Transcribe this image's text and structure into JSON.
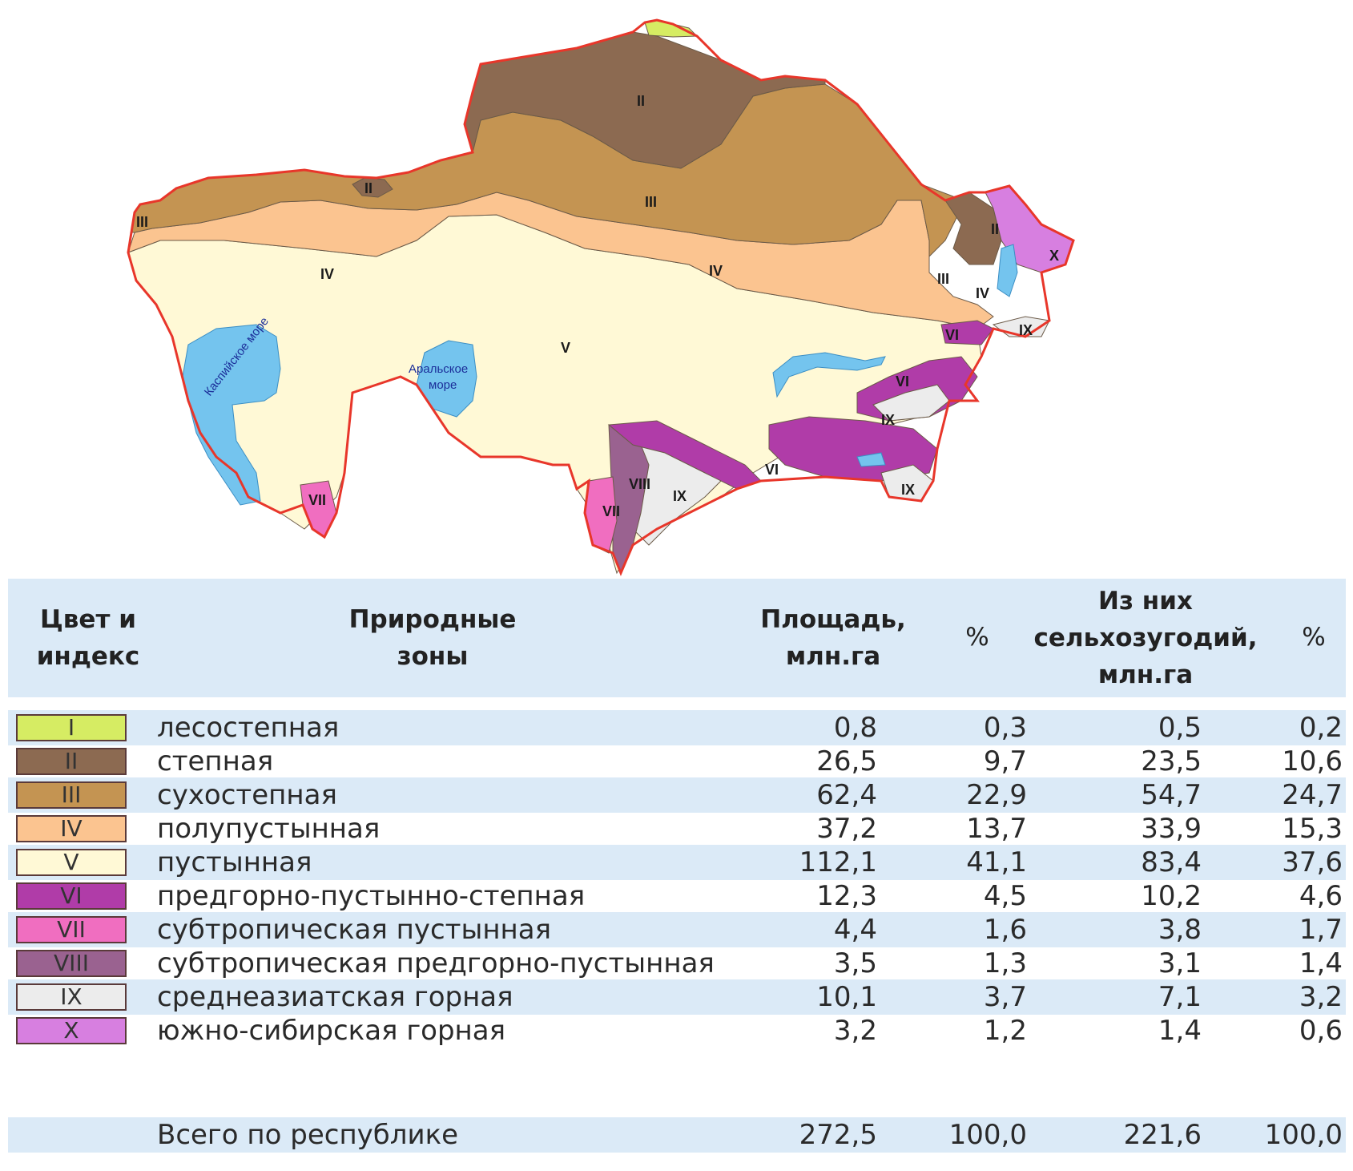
{
  "map": {
    "sea_labels": {
      "caspian": "Каспийское море",
      "aral_line1": "Аральское",
      "aral_line2": "море"
    },
    "colors": {
      "border": "#e8362a",
      "water": "#74c4ee",
      "I": "#d6ec63",
      "II": "#8c6a51",
      "III": "#c49452",
      "IV": "#fbc490",
      "V": "#fff9d6",
      "VI": "#b03ca8",
      "VII": "#f06ec0",
      "VIII": "#9a6290",
      "IX": "#ececec",
      "X": "#d77fe0"
    }
  },
  "legend": {
    "headers": {
      "color_index": [
        "Цвет и",
        "индекс"
      ],
      "zones": [
        "Природные",
        "зоны"
      ],
      "area": [
        "Площадь,",
        "млн.га"
      ],
      "pct": "%",
      "agri": [
        "Из них",
        "сельхозугодий,",
        "млн.га"
      ],
      "pct2": "%"
    },
    "rows": [
      {
        "index": "I",
        "color": "#d6ec63",
        "name": "лесостепная",
        "area": "0,8",
        "pct": "0,3",
        "agri": "0,5",
        "agri_pct": "0,2"
      },
      {
        "index": "II",
        "color": "#8c6a51",
        "name": "степная",
        "area": "26,5",
        "pct": "9,7",
        "agri": "23,5",
        "agri_pct": "10,6"
      },
      {
        "index": "III",
        "color": "#c49452",
        "name": "сухостепная",
        "area": "62,4",
        "pct": "22,9",
        "agri": "54,7",
        "agri_pct": "24,7"
      },
      {
        "index": "IV",
        "color": "#fbc490",
        "name": "полупустынная",
        "area": "37,2",
        "pct": "13,7",
        "agri": "33,9",
        "agri_pct": "15,3"
      },
      {
        "index": "V",
        "color": "#fff9d6",
        "name": "пустынная",
        "area": "112,1",
        "pct": "41,1",
        "agri": "83,4",
        "agri_pct": "37,6"
      },
      {
        "index": "VI",
        "color": "#b03ca8",
        "name": "предгорно-пустынно-степная",
        "area": "12,3",
        "pct": "4,5",
        "agri": "10,2",
        "agri_pct": "4,6"
      },
      {
        "index": "VII",
        "color": "#f06ec0",
        "name": "субтропическая пустынная",
        "area": "4,4",
        "pct": "1,6",
        "agri": "3,8",
        "agri_pct": "1,7"
      },
      {
        "index": "VIII",
        "color": "#9a6290",
        "name": "субтропическая предгорно-пустынная",
        "area": "3,5",
        "pct": "1,3",
        "agri": "3,1",
        "agri_pct": "1,4"
      },
      {
        "index": "IX",
        "color": "#ececec",
        "name": "среднеазиатская горная",
        "area": "10,1",
        "pct": "3,7",
        "agri": "7,1",
        "agri_pct": "3,2"
      },
      {
        "index": "X",
        "color": "#d77fe0",
        "name": "южно-сибирская горная",
        "area": "3,2",
        "pct": "1,2",
        "agri": "1,4",
        "agri_pct": "0,6"
      }
    ],
    "total": {
      "name": "Всего по республике",
      "area": "272,5",
      "pct": "100,0",
      "agri": "221,6",
      "agri_pct": "100,0"
    }
  }
}
